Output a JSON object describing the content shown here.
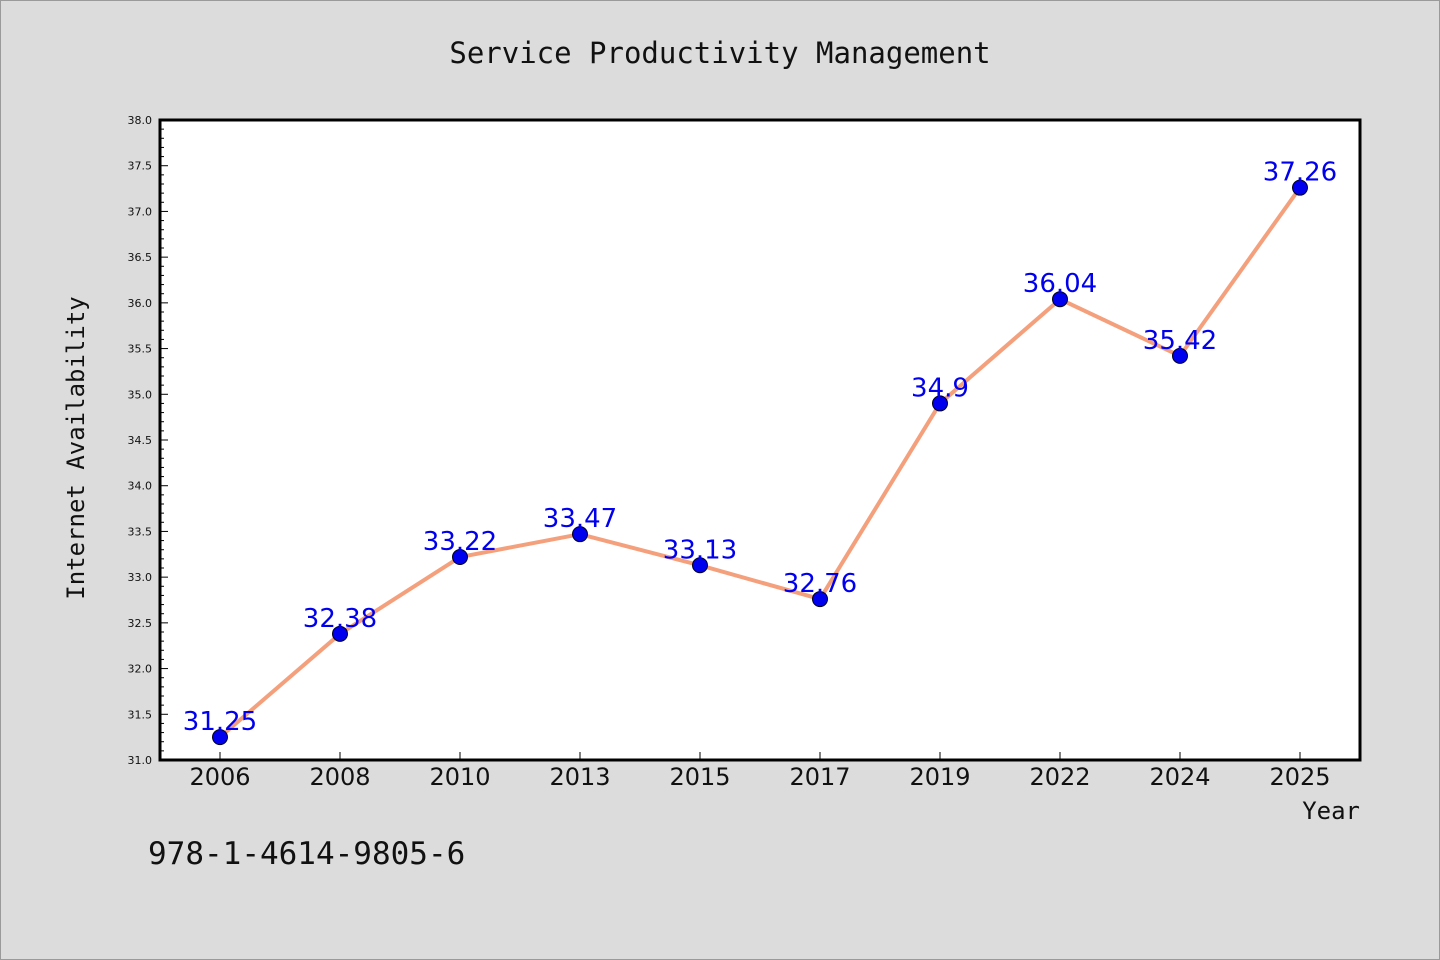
{
  "chart_data": {
    "type": "line",
    "title": "Service Productivity Management",
    "xlabel": "Year",
    "ylabel": "Internet Availability",
    "categories": [
      "2006",
      "2008",
      "2010",
      "2013",
      "2015",
      "2017",
      "2019",
      "2022",
      "2024",
      "2025"
    ],
    "series": [
      {
        "values": [
          31.25,
          32.38,
          33.22,
          33.47,
          33.13,
          32.76,
          34.9,
          36.04,
          35.42,
          37.26
        ],
        "line_color": "#f4a07c",
        "marker_color": "#0000ee"
      }
    ],
    "data_labels": [
      "31.25",
      "32.38",
      "33.22",
      "33.47",
      "33.13",
      "32.76",
      "34.9",
      "36.04",
      "35.42",
      "37.26"
    ],
    "ylim": [
      31.0,
      38.0
    ],
    "yticks": [
      "31.0",
      "31.5",
      "32.0",
      "32.5",
      "33.0",
      "33.5",
      "34.0",
      "34.5",
      "35.0",
      "35.5",
      "36.0",
      "36.5",
      "37.0",
      "37.5",
      "38.0"
    ],
    "grid": false,
    "legend": "none"
  },
  "footnote": "978-1-4614-9805-6"
}
